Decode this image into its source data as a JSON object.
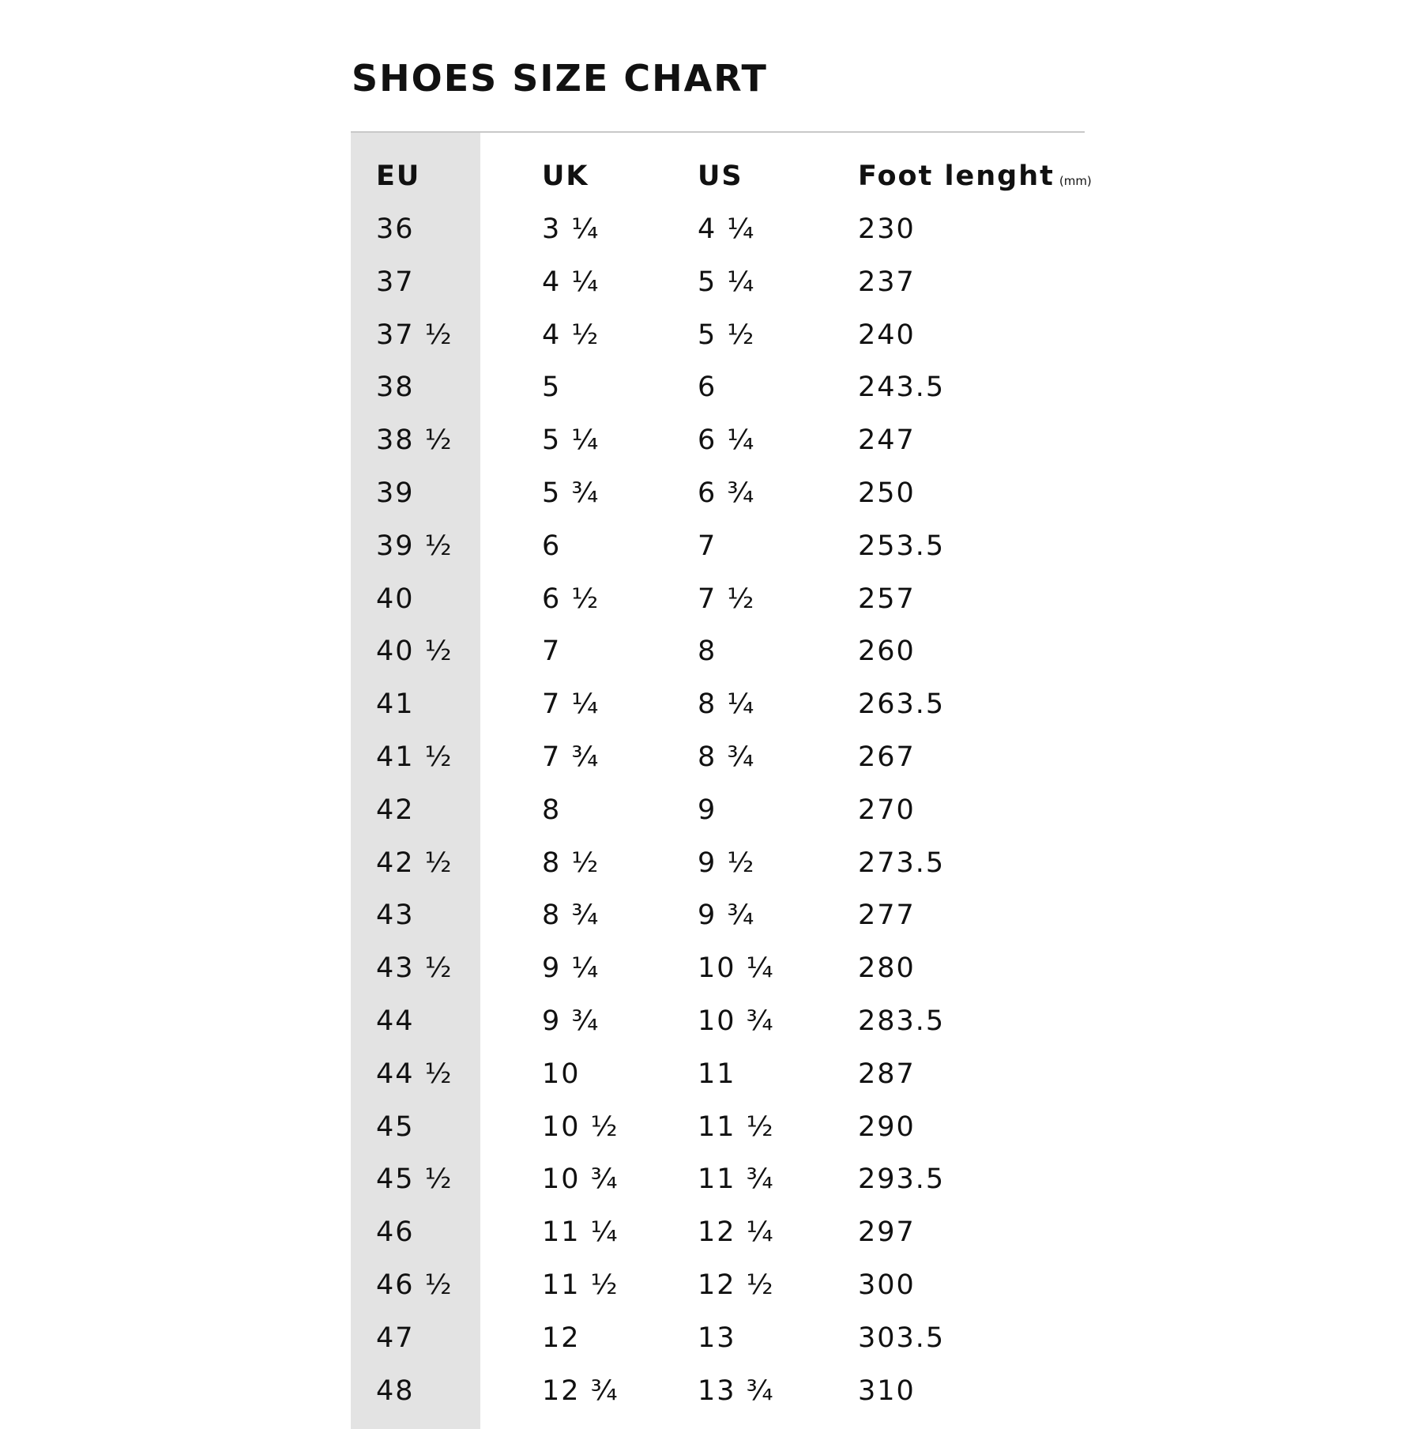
{
  "title": "SHOES SIZE CHART",
  "header": {
    "eu": "EU",
    "uk": "UK",
    "us": "US",
    "foot": "Foot lenght",
    "unit": "(mm)"
  },
  "rows": [
    [
      "36",
      "3 ¼",
      "4 ¼",
      "230"
    ],
    [
      "37",
      "4 ¼",
      "5 ¼",
      "237"
    ],
    [
      "37 ½",
      "4 ½",
      "5 ½",
      "240"
    ],
    [
      "38",
      "5",
      "6",
      "243.5"
    ],
    [
      "38 ½",
      "5 ¼",
      "6 ¼",
      "247"
    ],
    [
      "39",
      "5 ¾",
      "6 ¾",
      "250"
    ],
    [
      "39 ½",
      "6",
      "7",
      "253.5"
    ],
    [
      "40",
      "6 ½",
      "7 ½",
      "257"
    ],
    [
      "40 ½",
      "7",
      "8",
      "260"
    ],
    [
      "41",
      "7 ¼",
      "8 ¼",
      "263.5"
    ],
    [
      "41 ½",
      "7 ¾",
      "8 ¾",
      "267"
    ],
    [
      "42",
      "8",
      "9",
      "270"
    ],
    [
      "42 ½",
      "8 ½",
      "9 ½",
      "273.5"
    ],
    [
      "43",
      "8 ¾",
      "9 ¾",
      "277"
    ],
    [
      "43 ½",
      "9 ¼",
      "10 ¼",
      "280"
    ],
    [
      "44",
      "9 ¾",
      "10 ¾",
      "283.5"
    ],
    [
      "44 ½",
      "10",
      "11",
      "287"
    ],
    [
      "45",
      "10 ½",
      "11 ½",
      "290"
    ],
    [
      "45 ½",
      "10 ¾",
      "11 ¾",
      "293.5"
    ],
    [
      "46",
      "11 ¼",
      "12 ¼",
      "297"
    ],
    [
      "46 ½",
      "11 ½",
      "12 ½",
      "300"
    ],
    [
      "47",
      "12",
      "13",
      "303.5"
    ],
    [
      "48",
      "12 ¾",
      "13 ¾",
      "310"
    ]
  ],
  "colors": {
    "eu_column_bg": "#e3e3e3",
    "rule": "#c8c8c8",
    "text": "#111111"
  }
}
